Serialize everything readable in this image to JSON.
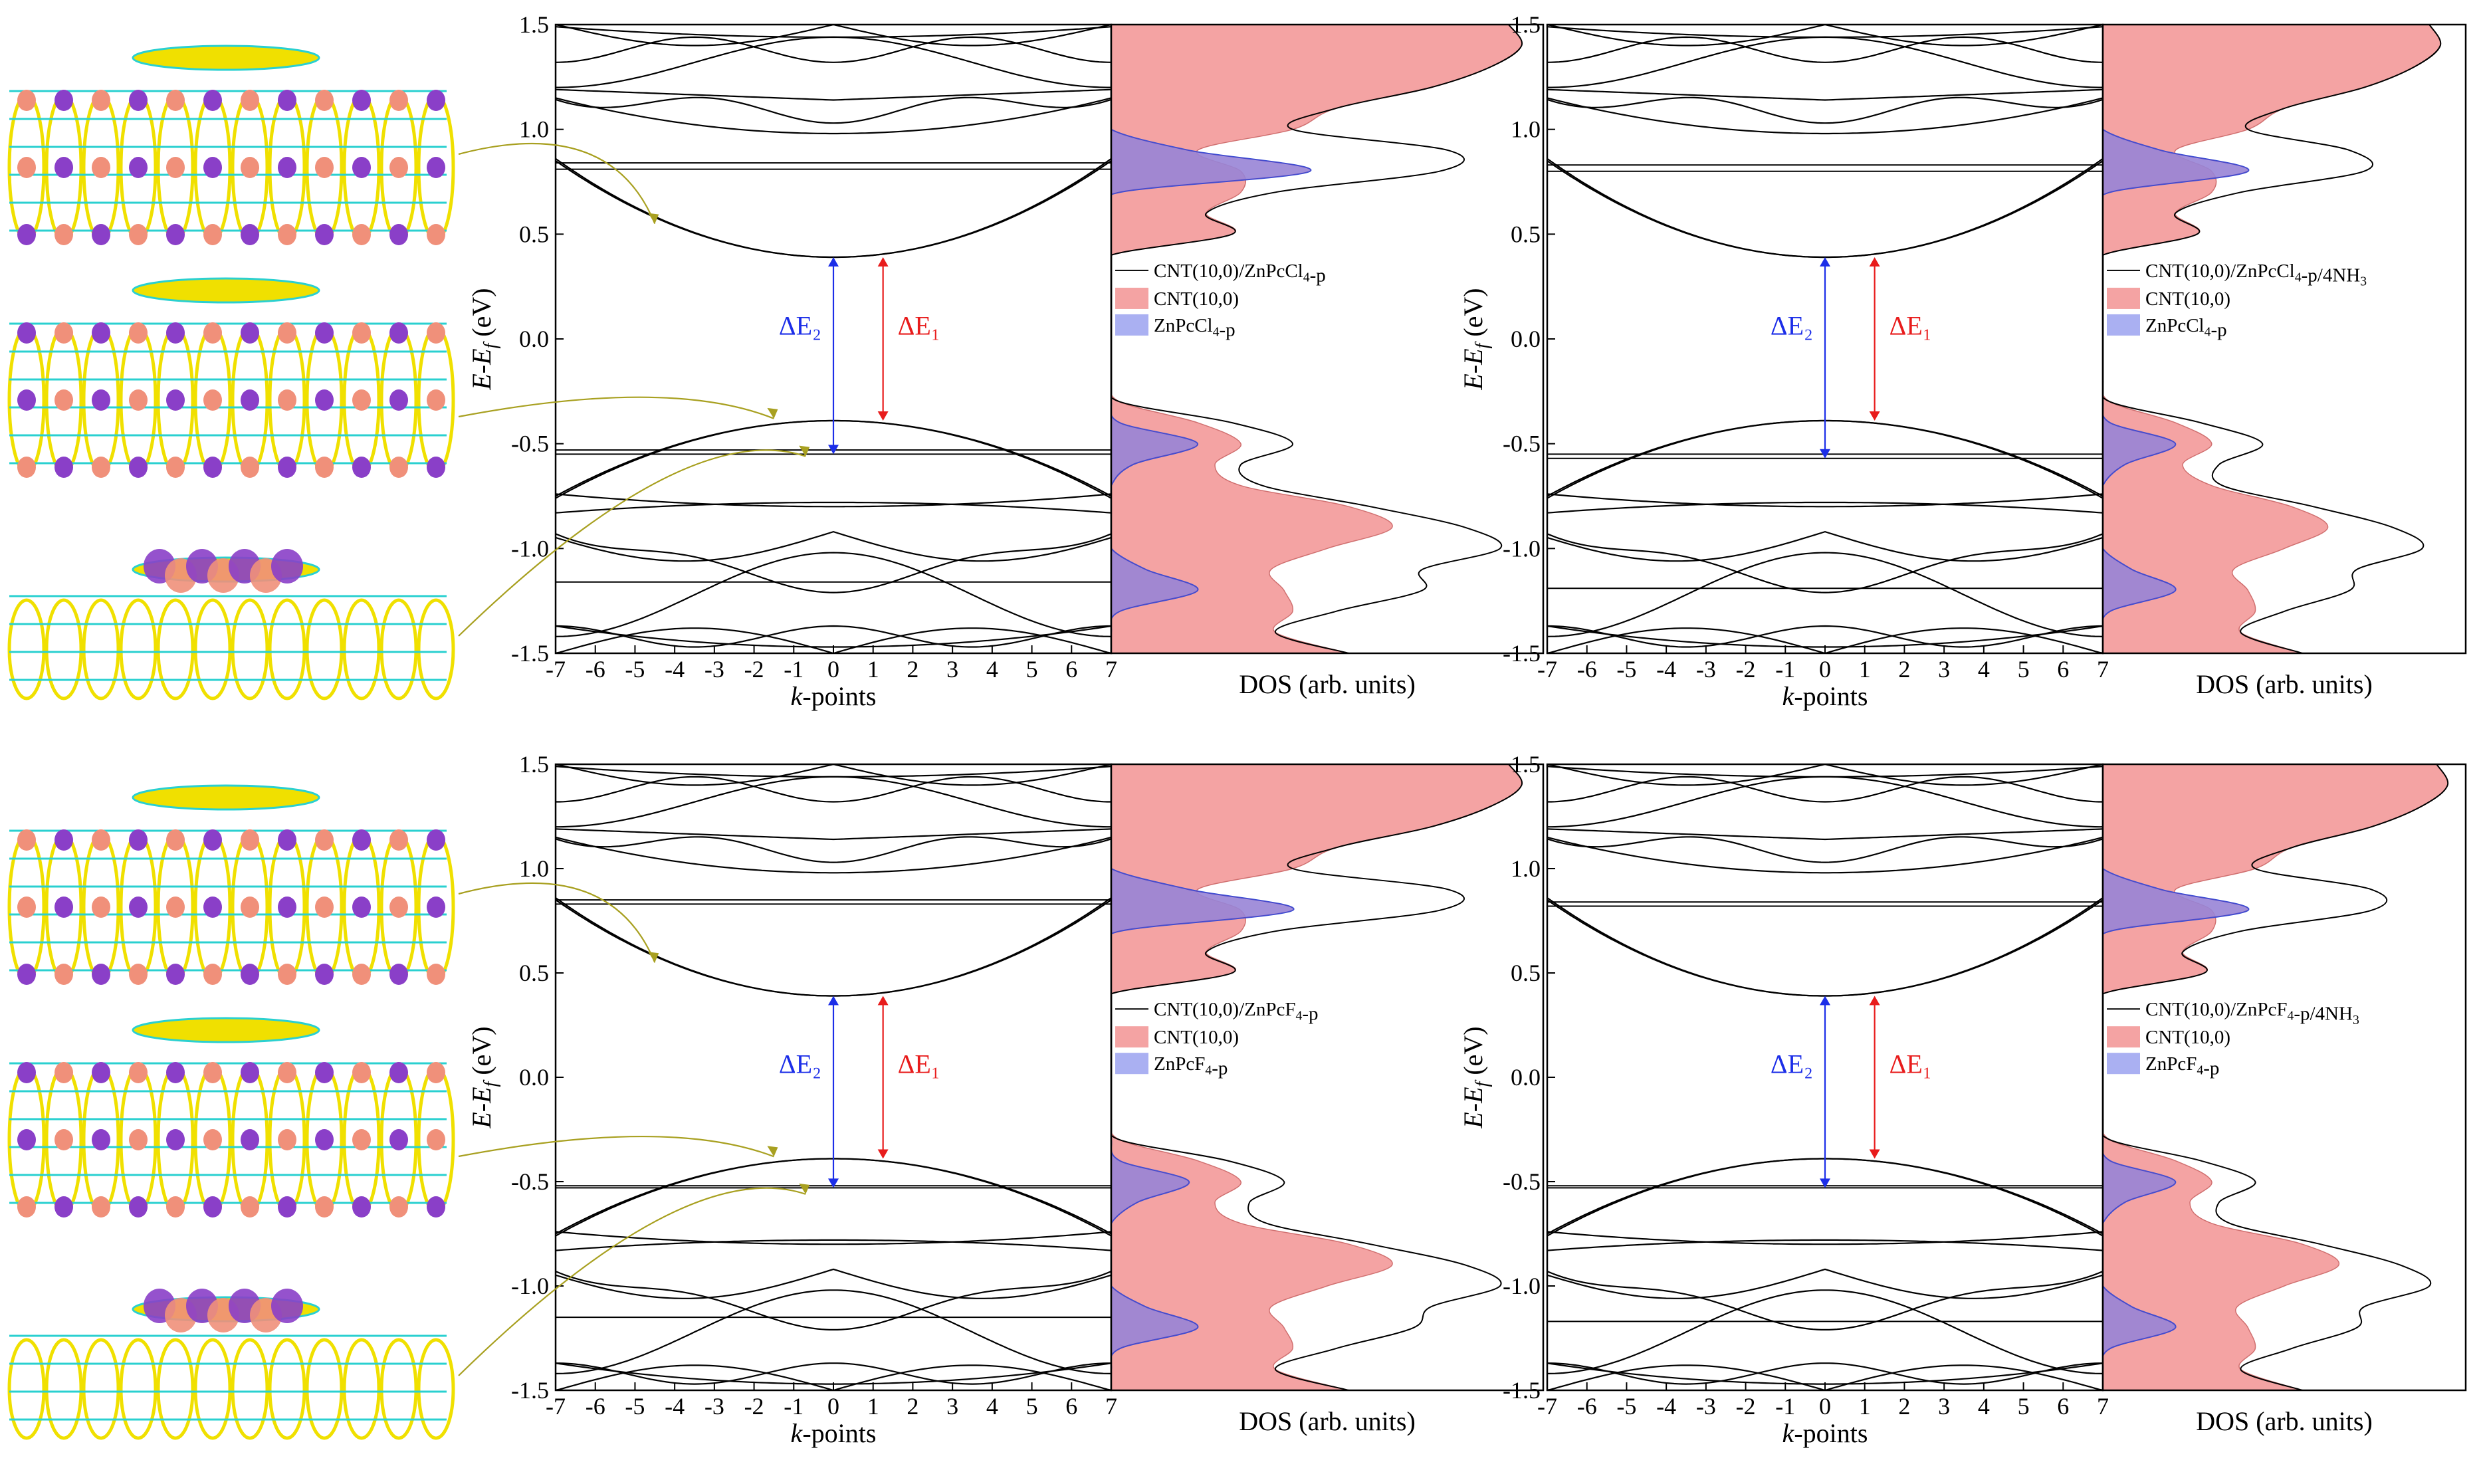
{
  "figure": {
    "common": {
      "ylabel": "E-E_f (eV)",
      "xlabel": "k-points",
      "dos_xlabel": "DOS (arb. units)",
      "delta_e1": "ΔE₁",
      "delta_e2": "ΔE₂",
      "colors": {
        "cnt_fill": "#f4a3a3",
        "pc_fill": "#aab0f2",
        "pc_edge": "#3a4fd6",
        "e1_arrow": "#e81c1c",
        "e2_arrow": "#1c2ee8",
        "curve": "#000000",
        "annot_arrow": "#a8a020",
        "iso_purple": "#8a3fc8",
        "iso_salmon": "#f0907a",
        "cnt_yellow": "#f0e000",
        "cnt_cyan": "#2ad0d0"
      },
      "molecule_icons": [
        "cnt-isosurface-cbm-icon",
        "cnt-isosurface-vbm-icon",
        "phthalocyanine-orbital-icon"
      ]
    }
  },
  "chart_data": [
    {
      "type": "line",
      "panel": "top-left",
      "title": "",
      "xlabel": "k-points",
      "ylabel": "E-E_f (eV)",
      "xlim": [
        -7,
        7
      ],
      "ylim": [
        -1.5,
        1.5
      ],
      "xticks": [
        "-7",
        "-6",
        "-5",
        "-4",
        "-3",
        "-2",
        "-1",
        "0",
        "1",
        "2",
        "3",
        "4",
        "5",
        "6",
        "7"
      ],
      "yticks": [
        "-1.5",
        "-1.0",
        "-0.5",
        "0.0",
        "0.5",
        "1.0",
        "1.5"
      ],
      "gap_annotations": {
        "delta_e1": [
          0.39,
          -0.39
        ],
        "delta_e2": [
          0.39,
          -0.55
        ]
      },
      "flat_bands": [
        0.84,
        0.81,
        -0.53,
        -0.55,
        -1.16
      ],
      "conduction_min": 0.39,
      "valence_max": -0.39,
      "dos": {
        "xlabel": "DOS (arb. units)",
        "legend": [
          "CNT(10,0)/ZnPcCl₄-p",
          "CNT(10,0)",
          "ZnPcCl₄-p"
        ],
        "legend_position": "center-right",
        "energies": [
          -1.5,
          -1.4,
          -1.3,
          -1.2,
          -1.1,
          -1.0,
          -0.9,
          -0.8,
          -0.7,
          -0.6,
          -0.5,
          -0.4,
          -0.3,
          -0.2,
          -0.1,
          0.0,
          0.1,
          0.2,
          0.3,
          0.4,
          0.5,
          0.6,
          0.7,
          0.8,
          0.9,
          1.0,
          1.1,
          1.2,
          1.3,
          1.4,
          1.5
        ],
        "total": [
          0.55,
          0.38,
          0.52,
          0.72,
          0.72,
          0.9,
          0.82,
          0.6,
          0.35,
          0.3,
          0.42,
          0.28,
          0.02,
          0,
          0,
          0,
          0,
          0,
          0,
          0,
          0.28,
          0.22,
          0.38,
          0.76,
          0.78,
          0.42,
          0.52,
          0.74,
          0.88,
          0.95,
          0.92
        ],
        "cnt": [
          0.55,
          0.38,
          0.42,
          0.4,
          0.37,
          0.5,
          0.65,
          0.55,
          0.3,
          0.24,
          0.3,
          0.2,
          0.02,
          0,
          0,
          0,
          0,
          0,
          0,
          0,
          0.28,
          0.22,
          0.3,
          0.3,
          0.2,
          0.42,
          0.52,
          0.74,
          0.88,
          0.95,
          0.92
        ],
        "pc": [
          0,
          0,
          0.02,
          0.2,
          0.08,
          0,
          0,
          0,
          0,
          0.05,
          0.2,
          0.02,
          0,
          0,
          0,
          0,
          0,
          0,
          0,
          0,
          0,
          0,
          0.02,
          0.46,
          0.18,
          0,
          0,
          0,
          0,
          0,
          0
        ]
      }
    },
    {
      "type": "line",
      "panel": "top-right",
      "title": "",
      "xlabel": "k-points",
      "ylabel": "E-E_f (eV)",
      "xlim": [
        -7,
        7
      ],
      "ylim": [
        -1.5,
        1.5
      ],
      "xticks": [
        "-7",
        "-6",
        "-5",
        "-4",
        "-3",
        "-2",
        "-1",
        "0",
        "1",
        "2",
        "3",
        "4",
        "5",
        "6",
        "7"
      ],
      "yticks": [
        "-1.5",
        "-1.0",
        "-0.5",
        "0.0",
        "0.5",
        "1.0",
        "1.5"
      ],
      "gap_annotations": {
        "delta_e1": [
          0.39,
          -0.39
        ],
        "delta_e2": [
          0.39,
          -0.57
        ]
      },
      "flat_bands": [
        0.83,
        0.8,
        -0.55,
        -0.57,
        -1.19
      ],
      "conduction_min": 0.39,
      "valence_max": -0.39,
      "dos": {
        "xlabel": "DOS (arb. units)",
        "legend": [
          "CNT(10,0)/ZnPcCl₄-p/4NH₃",
          "CNT(10,0)",
          "ZnPcCl₄-p"
        ],
        "legend_position": "center-right",
        "energies": [
          -1.5,
          -1.4,
          -1.3,
          -1.2,
          -1.1,
          -1.0,
          -0.9,
          -0.8,
          -0.7,
          -0.6,
          -0.5,
          -0.4,
          -0.3,
          -0.2,
          -0.1,
          0.0,
          0.1,
          0.2,
          0.3,
          0.4,
          0.5,
          0.6,
          0.7,
          0.8,
          0.9,
          1.0,
          1.1,
          1.2,
          1.3,
          1.4,
          1.5
        ],
        "total": [
          0.55,
          0.38,
          0.5,
          0.68,
          0.7,
          0.88,
          0.8,
          0.58,
          0.33,
          0.32,
          0.44,
          0.27,
          0.02,
          0,
          0,
          0,
          0,
          0,
          0,
          0,
          0.26,
          0.2,
          0.38,
          0.72,
          0.68,
          0.4,
          0.5,
          0.72,
          0.86,
          0.93,
          0.9
        ],
        "cnt": [
          0.55,
          0.38,
          0.42,
          0.4,
          0.36,
          0.5,
          0.62,
          0.52,
          0.3,
          0.22,
          0.3,
          0.2,
          0.02,
          0,
          0,
          0,
          0,
          0,
          0,
          0,
          0.26,
          0.2,
          0.3,
          0.3,
          0.2,
          0.4,
          0.5,
          0.72,
          0.86,
          0.93,
          0.9
        ],
        "pc": [
          0,
          0,
          0.02,
          0.2,
          0.08,
          0,
          0,
          0,
          0,
          0.06,
          0.2,
          0.02,
          0,
          0,
          0,
          0,
          0,
          0,
          0,
          0,
          0,
          0,
          0.02,
          0.4,
          0.16,
          0,
          0,
          0,
          0,
          0,
          0
        ]
      }
    },
    {
      "type": "line",
      "panel": "bottom-left",
      "title": "",
      "xlabel": "k-points",
      "ylabel": "E-E_f (eV)",
      "xlim": [
        -7,
        7
      ],
      "ylim": [
        -1.5,
        1.5
      ],
      "xticks": [
        "-7",
        "-6",
        "-5",
        "-4",
        "-3",
        "-2",
        "-1",
        "0",
        "1",
        "2",
        "3",
        "4",
        "5",
        "6",
        "7"
      ],
      "yticks": [
        "-1.5",
        "-1.0",
        "-0.5",
        "0.0",
        "0.5",
        "1.0",
        "1.5"
      ],
      "gap_annotations": {
        "delta_e1": [
          0.39,
          -0.39
        ],
        "delta_e2": [
          0.39,
          -0.53
        ]
      },
      "flat_bands": [
        0.85,
        0.83,
        -0.52,
        -0.53,
        -1.15
      ],
      "conduction_min": 0.39,
      "valence_max": -0.39,
      "dos": {
        "xlabel": "DOS (arb. units)",
        "legend": [
          "CNT(10,0)/ZnPcF₄-p",
          "CNT(10,0)",
          "ZnPcF₄-p"
        ],
        "legend_position": "center-right",
        "energies": [
          -1.5,
          -1.4,
          -1.3,
          -1.2,
          -1.1,
          -1.0,
          -0.9,
          -0.8,
          -0.7,
          -0.6,
          -0.5,
          -0.4,
          -0.3,
          -0.2,
          -0.1,
          0.0,
          0.1,
          0.2,
          0.3,
          0.4,
          0.5,
          0.6,
          0.7,
          0.8,
          0.9,
          1.0,
          1.1,
          1.2,
          1.3,
          1.4,
          1.5
        ],
        "total": [
          0.55,
          0.38,
          0.52,
          0.7,
          0.74,
          0.9,
          0.82,
          0.6,
          0.36,
          0.32,
          0.4,
          0.27,
          0.02,
          0,
          0,
          0,
          0,
          0,
          0,
          0,
          0.28,
          0.22,
          0.38,
          0.76,
          0.78,
          0.42,
          0.52,
          0.74,
          0.88,
          0.95,
          0.92
        ],
        "cnt": [
          0.55,
          0.38,
          0.42,
          0.4,
          0.37,
          0.5,
          0.65,
          0.55,
          0.3,
          0.24,
          0.3,
          0.2,
          0.02,
          0,
          0,
          0,
          0,
          0,
          0,
          0,
          0.28,
          0.22,
          0.3,
          0.3,
          0.2,
          0.42,
          0.52,
          0.74,
          0.88,
          0.95,
          0.92
        ],
        "pc": [
          0,
          0,
          0.02,
          0.2,
          0.08,
          0,
          0,
          0,
          0,
          0.06,
          0.18,
          0.02,
          0,
          0,
          0,
          0,
          0,
          0,
          0,
          0,
          0,
          0,
          0.02,
          0.42,
          0.18,
          0,
          0,
          0,
          0,
          0,
          0
        ]
      }
    },
    {
      "type": "line",
      "panel": "bottom-right",
      "title": "",
      "xlabel": "k-points",
      "ylabel": "E-E_f (eV)",
      "xlim": [
        -7,
        7
      ],
      "ylim": [
        -1.5,
        1.5
      ],
      "xticks": [
        "-7",
        "-6",
        "-5",
        "-4",
        "-3",
        "-2",
        "-1",
        "0",
        "1",
        "2",
        "3",
        "4",
        "5",
        "6",
        "7"
      ],
      "yticks": [
        "-1.5",
        "-1.0",
        "-0.5",
        "0.0",
        "0.5",
        "1.0",
        "1.5"
      ],
      "gap_annotations": {
        "delta_e1": [
          0.39,
          -0.39
        ],
        "delta_e2": [
          0.39,
          -0.53
        ]
      },
      "flat_bands": [
        0.84,
        0.82,
        -0.52,
        -0.53,
        -1.17
      ],
      "conduction_min": 0.39,
      "valence_max": -0.39,
      "dos": {
        "xlabel": "DOS (arb. units)",
        "legend": [
          "CNT(10,0)/ZnPcF₄-p/4NH₃",
          "CNT(10,0)",
          "ZnPcF₄-p"
        ],
        "legend_position": "center-right",
        "energies": [
          -1.5,
          -1.4,
          -1.3,
          -1.2,
          -1.1,
          -1.0,
          -0.9,
          -0.8,
          -0.7,
          -0.6,
          -0.5,
          -0.4,
          -0.3,
          -0.2,
          -0.1,
          0.0,
          0.1,
          0.2,
          0.3,
          0.4,
          0.5,
          0.6,
          0.7,
          0.8,
          0.9,
          1.0,
          1.1,
          1.2,
          1.3,
          1.4,
          1.5
        ],
        "total": [
          0.55,
          0.38,
          0.52,
          0.7,
          0.72,
          0.9,
          0.82,
          0.6,
          0.35,
          0.32,
          0.42,
          0.27,
          0.02,
          0,
          0,
          0,
          0,
          0,
          0,
          0,
          0.28,
          0.22,
          0.38,
          0.74,
          0.74,
          0.42,
          0.52,
          0.74,
          0.88,
          0.95,
          0.92
        ],
        "cnt": [
          0.55,
          0.38,
          0.42,
          0.4,
          0.37,
          0.5,
          0.65,
          0.55,
          0.3,
          0.24,
          0.3,
          0.2,
          0.02,
          0,
          0,
          0,
          0,
          0,
          0,
          0,
          0.28,
          0.22,
          0.3,
          0.3,
          0.2,
          0.42,
          0.52,
          0.74,
          0.88,
          0.95,
          0.92
        ],
        "pc": [
          0,
          0,
          0.02,
          0.2,
          0.08,
          0,
          0,
          0,
          0,
          0.06,
          0.2,
          0.02,
          0,
          0,
          0,
          0,
          0,
          0,
          0,
          0,
          0,
          0,
          0.02,
          0.4,
          0.16,
          0,
          0,
          0,
          0,
          0,
          0
        ]
      }
    }
  ]
}
